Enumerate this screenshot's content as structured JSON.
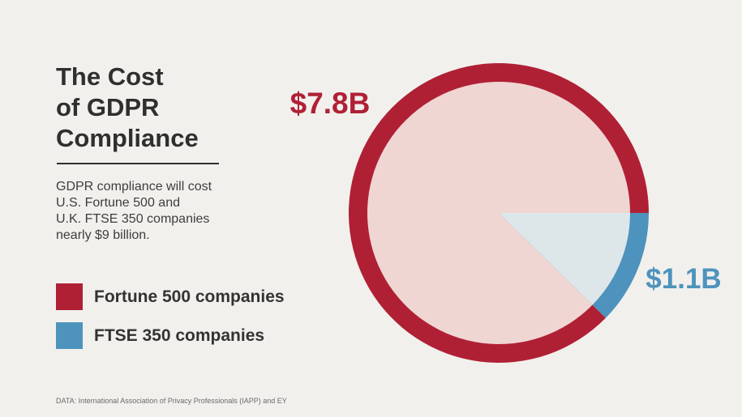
{
  "title_lines": [
    "The Cost",
    "of GDPR",
    "Compliance"
  ],
  "description_lines": [
    "GDPR compliance will cost",
    "U.S. Fortune 500 and",
    "U.K. FTSE 350 companies",
    "nearly $9 billion."
  ],
  "source": "DATA: International Association of Privacy Professionals (IAPP) and EY",
  "colors": {
    "fortune_ring": "#b02035",
    "fortune_fill": "#f0d6d3",
    "ftse_ring": "#4d93bd",
    "ftse_fill": "#dde7ea",
    "background": "#f2f0ed"
  },
  "chart_data": {
    "type": "pie",
    "title": "The Cost of GDPR Compliance",
    "unit": "USD billions",
    "legend_position": "left",
    "slices": [
      {
        "name": "Fortune 500 companies",
        "value": 7.8,
        "label": "$7.8B"
      },
      {
        "name": "FTSE 350 companies",
        "value": 1.1,
        "label": "$1.1B"
      }
    ]
  }
}
